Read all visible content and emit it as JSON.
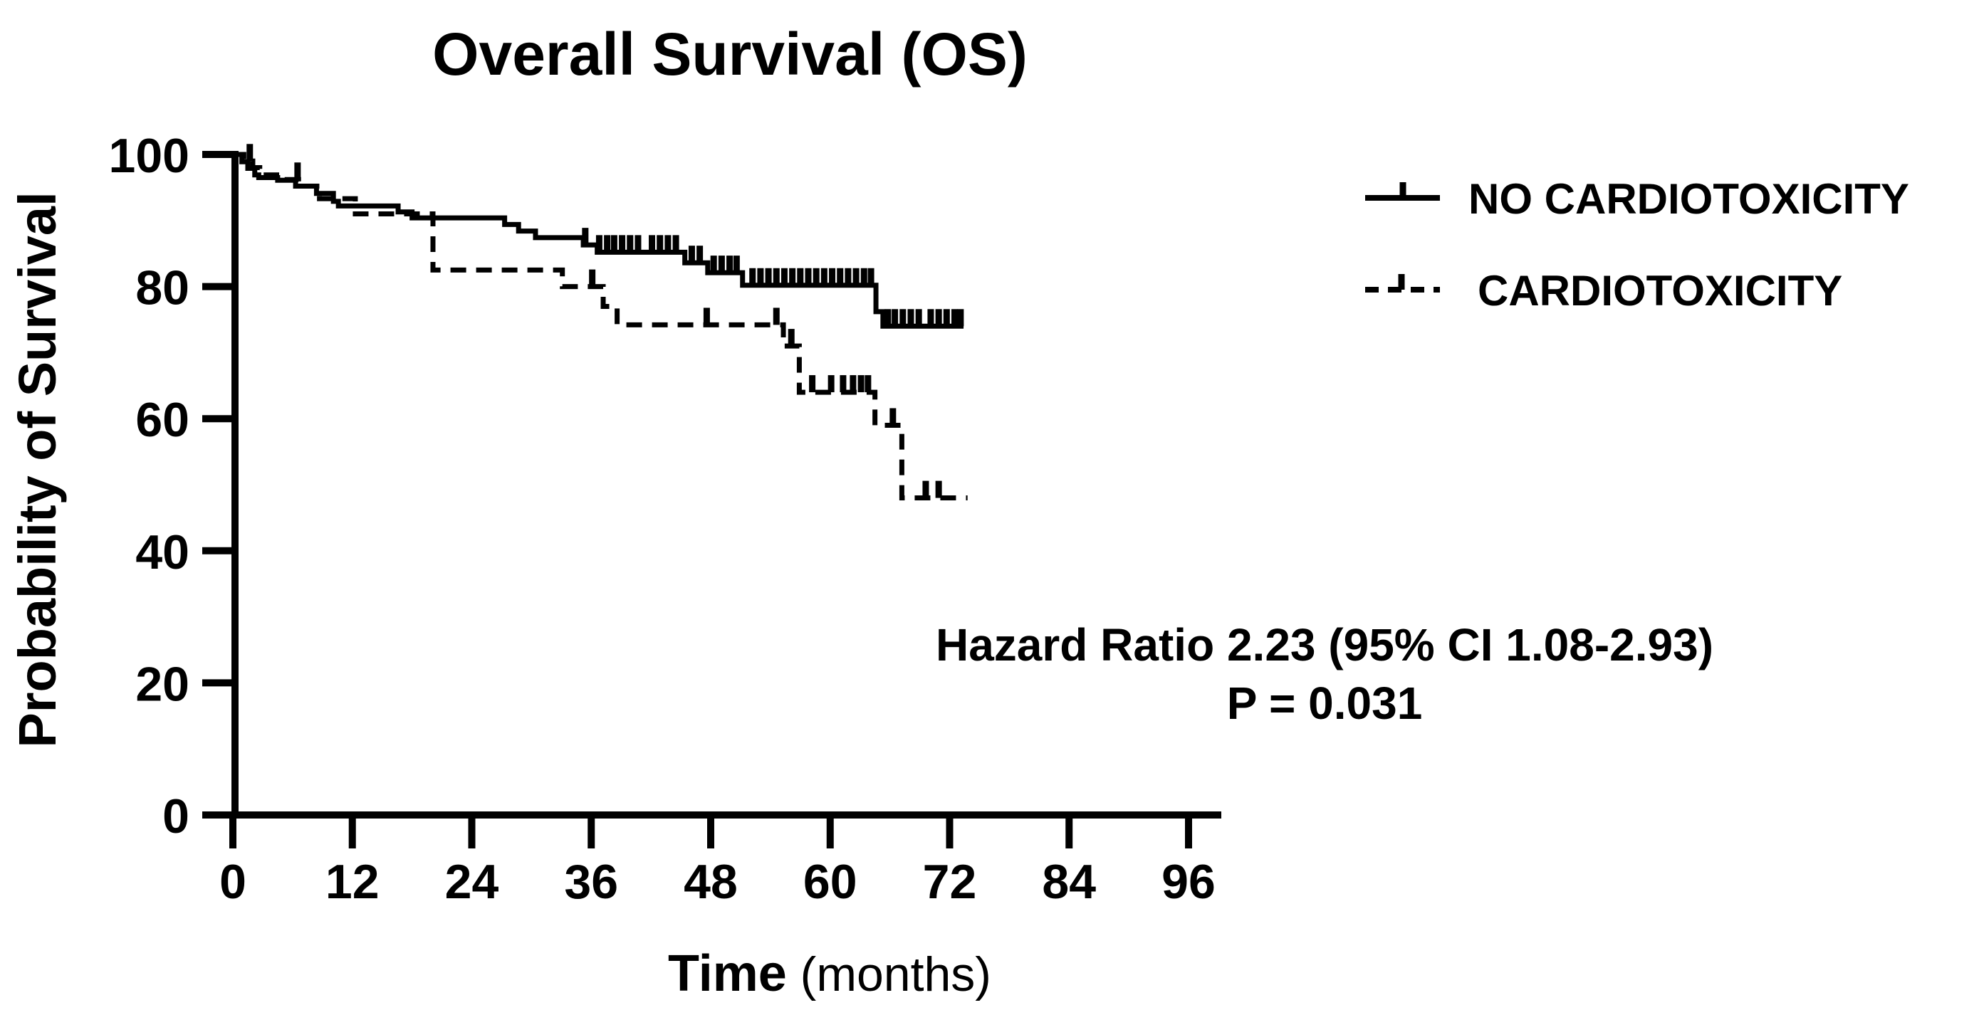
{
  "figure": {
    "background": "#ffffff",
    "ink": "#000000"
  },
  "chart_data": {
    "type": "line",
    "variant": "kaplan-meier-step",
    "title": "Overall Survival (OS)",
    "xlabel": "Time (months)",
    "xlabel_bold": "Time",
    "xlabel_suffix": " (months)",
    "ylabel": "Probability of Survival",
    "xlim": [
      0,
      99
    ],
    "ylim": [
      0,
      100
    ],
    "x_ticks": [
      0,
      12,
      24,
      36,
      48,
      60,
      72,
      84,
      96
    ],
    "y_ticks": [
      0,
      20,
      40,
      60,
      80,
      100
    ],
    "grid": false,
    "legend_position": "upper-right-outside",
    "annotation": {
      "line1": "Hazard Ratio 2.23 (95% CI 1.08-2.93)",
      "line2": "P = 0.031"
    },
    "series": [
      {
        "name": "NO CARDIOTOXICITY",
        "line_style": "solid",
        "color": "#000000",
        "steps": [
          [
            0,
            100
          ],
          [
            0.9,
            98.9
          ],
          [
            1.5,
            97.9
          ],
          [
            2.2,
            96.9
          ],
          [
            2.6,
            96.5
          ],
          [
            4.5,
            96.1
          ],
          [
            6.3,
            95.2
          ],
          [
            8.4,
            94.1
          ],
          [
            10.1,
            92.9
          ],
          [
            10.6,
            92.2
          ],
          [
            16.6,
            91.3
          ],
          [
            18,
            90.4
          ],
          [
            27.3,
            89.4
          ],
          [
            28.7,
            88.4
          ],
          [
            30.4,
            87.4
          ],
          [
            35.2,
            86.3
          ],
          [
            36.6,
            85.2
          ],
          [
            45.4,
            83.6
          ],
          [
            47.7,
            82.1
          ],
          [
            51.2,
            80.2
          ],
          [
            64.6,
            76.2
          ],
          [
            65.3,
            74
          ],
          [
            73.4,
            74
          ]
        ],
        "censor_ticks": [
          35.4,
          36.8,
          37.6,
          38.3,
          39.1,
          39.9,
          40.7,
          42.1,
          42.9,
          43.7,
          44.5,
          46.1,
          46.9,
          48.3,
          49.1,
          49.9,
          50.6,
          52.2,
          53.0,
          53.8,
          54.6,
          55.4,
          56.2,
          57.0,
          57.8,
          58.6,
          59.4,
          60.2,
          61.0,
          61.8,
          62.6,
          63.4,
          64.1,
          65.8,
          66.5,
          67.3,
          68.1,
          68.9,
          70.1,
          70.9,
          71.7,
          72.5,
          73.1
        ]
      },
      {
        "name": "CARDIOTOXICITY",
        "line_style": "dashed",
        "color": "#000000",
        "steps": [
          [
            0,
            100
          ],
          [
            1.1,
            99
          ],
          [
            2,
            98
          ],
          [
            2.7,
            96.9
          ],
          [
            4.4,
            96.2
          ],
          [
            6.6,
            95.2
          ],
          [
            8.7,
            93.3
          ],
          [
            12.3,
            91
          ],
          [
            20.1,
            82.5
          ],
          [
            33.1,
            80
          ],
          [
            37.2,
            77
          ],
          [
            38.6,
            74.2
          ],
          [
            55.3,
            71
          ],
          [
            56.9,
            64
          ],
          [
            64.5,
            59
          ],
          [
            67.2,
            48
          ],
          [
            73.8,
            48
          ]
        ],
        "censor_ticks": [
          1.7,
          6.5,
          36.1,
          47.6,
          54.6,
          56.1,
          58.2,
          60.1,
          61.3,
          62.3,
          63.1,
          63.8,
          66.3,
          69.6,
          70.9
        ]
      }
    ]
  },
  "legend": {
    "entries": [
      {
        "label": "NO CARDIOTOXICITY",
        "line_style": "solid"
      },
      {
        "label": "CARDIOTOXICITY",
        "line_style": "dashed"
      }
    ]
  }
}
